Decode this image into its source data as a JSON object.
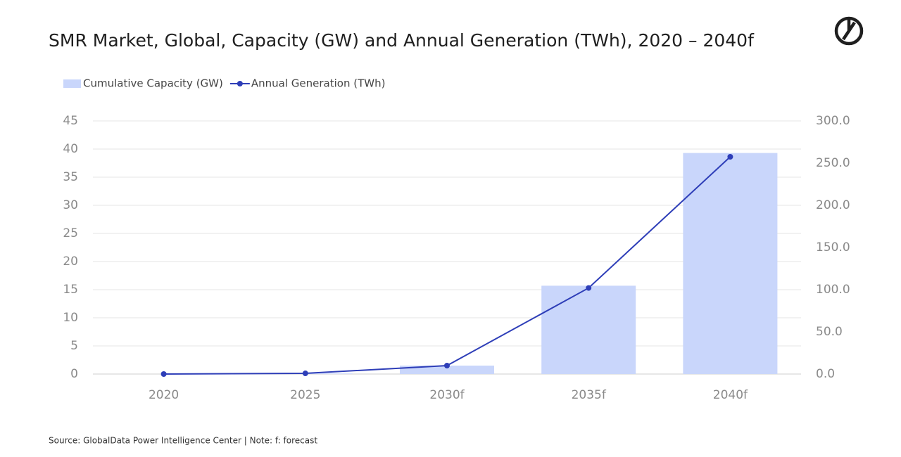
{
  "chart_data": {
    "type": "bar_line",
    "title": "SMR Market, Global, Capacity (GW) and Annual Generation (TWh), 2020 – 2040f",
    "source": "Source: GlobalData Power Intelligence Center | Note: f: forecast",
    "categories": [
      "2020",
      "2025",
      "2030f",
      "2035f",
      "2040f"
    ],
    "series": [
      {
        "name": "Cumulative Capacity (GW)",
        "type": "bar",
        "color": "#c9d6fb",
        "values": [
          0,
          0.1,
          1.5,
          15.7,
          39.3
        ]
      },
      {
        "name": "Annual Generation (TWh)",
        "type": "line",
        "axis": "y2",
        "color": "#2e3eb8",
        "values": [
          0,
          0.8,
          10,
          102,
          257.5
        ]
      }
    ],
    "ylim": [
      0,
      45
    ],
    "yticks": [
      0,
      5,
      10,
      15,
      20,
      25,
      30,
      35,
      40,
      45
    ],
    "y2lim": [
      0,
      300
    ],
    "y2ticks": [
      {
        "value": 0,
        "label": "0.0"
      },
      {
        "value": 50,
        "label": "50.0"
      },
      {
        "value": 100,
        "label": "100.0"
      },
      {
        "value": 150,
        "label": "150.0"
      },
      {
        "value": 200,
        "label": "200.0"
      },
      {
        "value": 250,
        "label": "250.0"
      },
      {
        "value": 300,
        "label": "300.0"
      }
    ],
    "grid": true
  }
}
